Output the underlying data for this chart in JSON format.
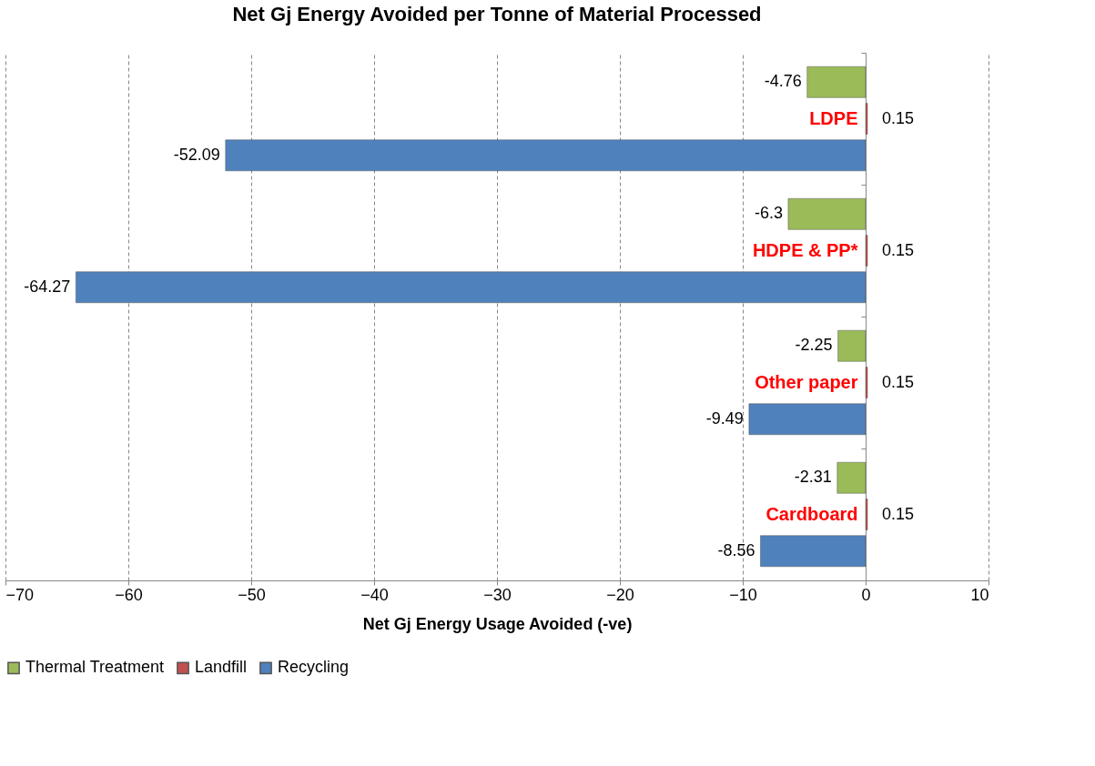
{
  "chart_data": {
    "type": "bar",
    "orientation": "horizontal",
    "title": "Net Gj Energy Avoided per Tonne of Material Processed",
    "xlabel": "Net Gj Energy Usage Avoided (-ve)",
    "categories": [
      "LDPE",
      "HDPE & PP*",
      "Other paper",
      "Cardboard"
    ],
    "series": [
      {
        "name": "Thermal Treatment",
        "color": "#9bbb59",
        "values": [
          -4.76,
          -6.3,
          -2.25,
          -2.31
        ]
      },
      {
        "name": "Landfill",
        "color": "#c0504d",
        "values": [
          0.15,
          0.15,
          0.15,
          0.15
        ]
      },
      {
        "name": "Recycling",
        "color": "#4f81bd",
        "values": [
          -52.09,
          -64.27,
          -9.49,
          -8.56
        ]
      }
    ],
    "xlim": [
      -70,
      10
    ],
    "xticks": [
      -70,
      -60,
      -50,
      -40,
      -30,
      -20,
      -10,
      0,
      10
    ],
    "grid": "x",
    "legend": "bottom",
    "data_labels": true
  }
}
